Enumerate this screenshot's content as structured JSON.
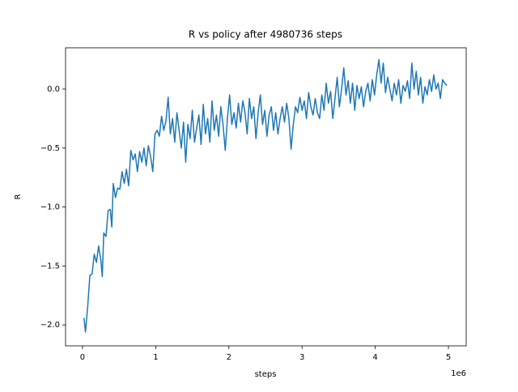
{
  "chart_data": {
    "type": "line",
    "title": "R vs policy after 4980736 steps",
    "x_label": "steps",
    "y_label": "R",
    "x_offset_label": "1e6",
    "xlim": [
      -232000,
      5243000
    ],
    "ylim": [
      -2.177,
      0.35
    ],
    "xticks": [
      0,
      {
        "value": 1000000,
        "label": "1"
      },
      {
        "value": 2000000,
        "label": "2"
      },
      {
        "value": 3000000,
        "label": "3"
      },
      {
        "value": 4000000,
        "label": "4"
      },
      {
        "value": 5000000,
        "label": "5"
      }
    ],
    "yticks": [
      {
        "value": -2,
        "label": "−2.0"
      },
      {
        "value": -1.5,
        "label": "−1.5"
      },
      {
        "value": -1,
        "label": "−1.0"
      },
      {
        "value": -0.5,
        "label": "−0.5"
      },
      {
        "value": 0,
        "label": "0.0"
      }
    ],
    "grid": false,
    "x": [
      20000,
      40000,
      70000,
      100000,
      130000,
      160000,
      190000,
      220000,
      250000,
      270000,
      290000,
      320000,
      350000,
      380000,
      400000,
      420000,
      450000,
      480000,
      510000,
      540000,
      570000,
      600000,
      630000,
      660000,
      690000,
      720000,
      750000,
      780000,
      810000,
      840000,
      870000,
      900000,
      930000,
      960000,
      990000,
      1020000,
      1050000,
      1080000,
      1110000,
      1140000,
      1170000,
      1200000,
      1230000,
      1260000,
      1290000,
      1320000,
      1350000,
      1380000,
      1410000,
      1440000,
      1470000,
      1500000,
      1530000,
      1560000,
      1590000,
      1620000,
      1650000,
      1680000,
      1710000,
      1740000,
      1770000,
      1800000,
      1830000,
      1860000,
      1890000,
      1920000,
      1950000,
      1980000,
      2010000,
      2040000,
      2070000,
      2100000,
      2130000,
      2160000,
      2190000,
      2220000,
      2250000,
      2280000,
      2310000,
      2340000,
      2370000,
      2400000,
      2430000,
      2460000,
      2490000,
      2520000,
      2550000,
      2580000,
      2610000,
      2640000,
      2670000,
      2700000,
      2730000,
      2760000,
      2790000,
      2820000,
      2850000,
      2880000,
      2910000,
      2940000,
      2970000,
      3000000,
      3030000,
      3060000,
      3090000,
      3120000,
      3150000,
      3180000,
      3210000,
      3240000,
      3270000,
      3300000,
      3330000,
      3360000,
      3390000,
      3420000,
      3450000,
      3480000,
      3510000,
      3540000,
      3570000,
      3600000,
      3630000,
      3660000,
      3690000,
      3720000,
      3750000,
      3780000,
      3810000,
      3840000,
      3870000,
      3900000,
      3930000,
      3960000,
      3990000,
      4020000,
      4050000,
      4080000,
      4110000,
      4140000,
      4170000,
      4200000,
      4230000,
      4260000,
      4290000,
      4320000,
      4350000,
      4380000,
      4410000,
      4440000,
      4470000,
      4500000,
      4530000,
      4560000,
      4590000,
      4620000,
      4650000,
      4680000,
      4710000,
      4740000,
      4770000,
      4800000,
      4830000,
      4860000,
      4890000,
      4920000,
      4950000,
      4980000
    ],
    "series": [
      {
        "name": "R",
        "color": "#1f77b4",
        "values": [
          -1.94,
          -2.06,
          -1.85,
          -1.58,
          -1.57,
          -1.4,
          -1.47,
          -1.33,
          -1.45,
          -1.59,
          -1.22,
          -1.25,
          -1.03,
          -1.02,
          -1.17,
          -0.8,
          -0.92,
          -0.84,
          -0.85,
          -0.7,
          -0.8,
          -0.68,
          -0.82,
          -0.52,
          -0.6,
          -0.55,
          -0.7,
          -0.53,
          -0.62,
          -0.5,
          -0.65,
          -0.48,
          -0.57,
          -0.7,
          -0.38,
          -0.35,
          -0.4,
          -0.23,
          -0.35,
          -0.27,
          -0.07,
          -0.38,
          -0.25,
          -0.45,
          -0.2,
          -0.35,
          -0.5,
          -0.28,
          -0.62,
          -0.3,
          -0.42,
          -0.18,
          -0.45,
          -0.33,
          -0.22,
          -0.47,
          -0.13,
          -0.38,
          -0.25,
          -0.45,
          -0.1,
          -0.35,
          -0.22,
          -0.4,
          -0.15,
          -0.3,
          -0.52,
          -0.25,
          -0.05,
          -0.3,
          -0.2,
          -0.33,
          -0.12,
          -0.28,
          -0.1,
          -0.2,
          -0.38,
          -0.08,
          -0.25,
          -0.15,
          -0.42,
          -0.2,
          -0.05,
          -0.3,
          -0.18,
          -0.4,
          -0.22,
          -0.15,
          -0.35,
          -0.2,
          -0.38,
          -0.25,
          -0.15,
          -0.28,
          -0.12,
          -0.25,
          -0.51,
          -0.3,
          -0.15,
          -0.2,
          -0.07,
          -0.18,
          -0.1,
          -0.25,
          -0.03,
          -0.15,
          -0.22,
          -0.08,
          -0.2,
          -0.25,
          -0.05,
          -0.18,
          0.05,
          -0.12,
          -0.02,
          -0.25,
          -0.08,
          0.1,
          -0.15,
          0.0,
          0.18,
          -0.05,
          0.07,
          -0.12,
          0.05,
          -0.18,
          0.03,
          -0.08,
          0.02,
          -0.15,
          -0.02,
          0.05,
          -0.1,
          0.08,
          -0.05,
          0.12,
          0.25,
          0.05,
          0.22,
          -0.03,
          0.1,
          0.0,
          -0.1,
          0.05,
          -0.05,
          0.08,
          -0.12,
          0.03,
          -0.02,
          0.07,
          -0.08,
          0.22,
          0.0,
          0.15,
          -0.05,
          0.1,
          -0.12,
          0.02,
          -0.05,
          0.08,
          -0.02,
          0.12,
          0.0,
          0.05,
          -0.08,
          0.08,
          0.05,
          0.03
        ]
      }
    ]
  }
}
